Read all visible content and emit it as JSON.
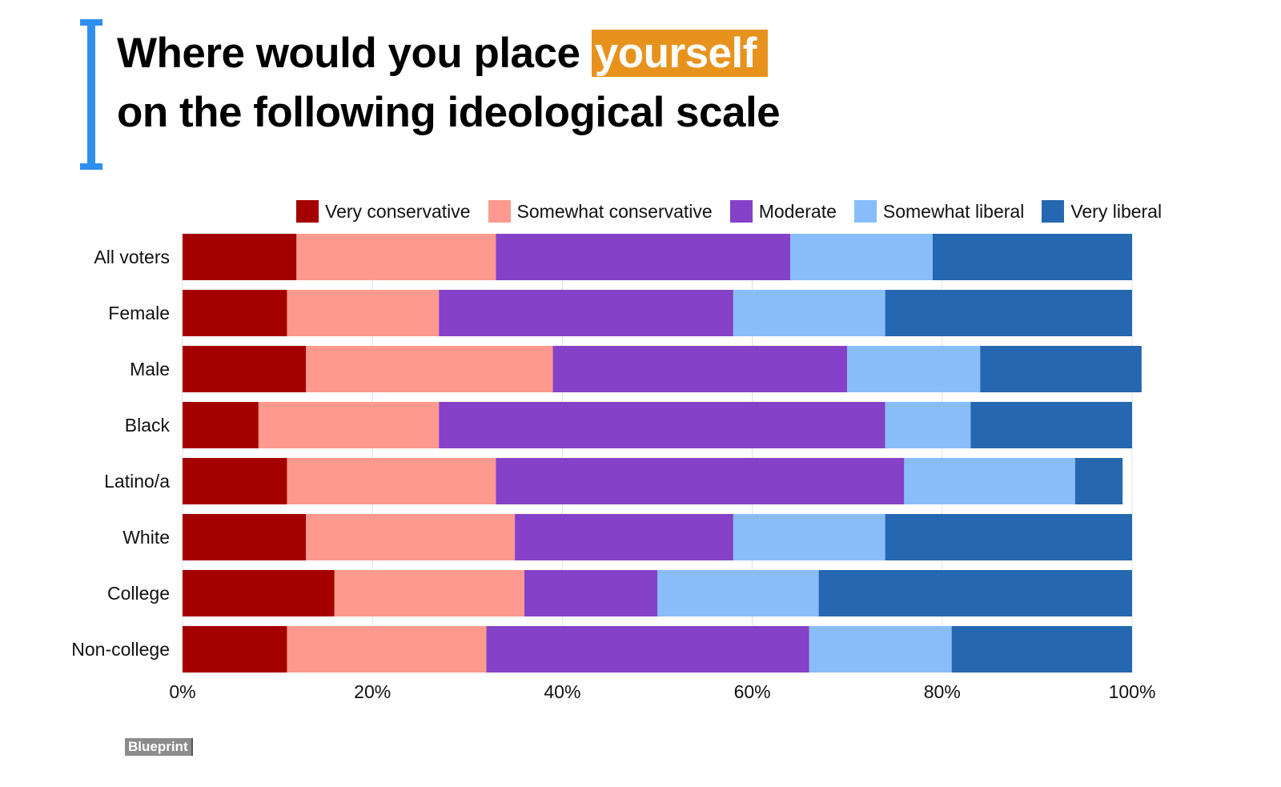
{
  "header": {
    "title_part1": "Where would you place",
    "title_highlight": "yourself",
    "title_line2": "on the following ideological scale"
  },
  "brand": {
    "logo_text": "Blueprint"
  },
  "chart_data": {
    "type": "bar",
    "orientation": "horizontal",
    "stacked": true,
    "title": "Where would you place yourself on the following ideological scale",
    "xlim": [
      0,
      100
    ],
    "x_ticks": [
      "0%",
      "20%",
      "40%",
      "60%",
      "80%",
      "100%"
    ],
    "x_tick_values": [
      0,
      20,
      40,
      60,
      80,
      100
    ],
    "grid": true,
    "legend_position": "top",
    "categories": [
      "All voters",
      "Female",
      "Male",
      "Black",
      "Latino/a",
      "White",
      "College",
      "Non-college"
    ],
    "series": [
      {
        "name": "Very conservative",
        "color": "#a50000",
        "values": [
          12,
          11,
          13,
          8,
          11,
          13,
          16,
          11
        ]
      },
      {
        "name": "Somewhat conservative",
        "color": "#fd998e",
        "values": [
          21,
          16,
          26,
          19,
          22,
          22,
          20,
          21
        ]
      },
      {
        "name": "Moderate",
        "color": "#8541c8",
        "values": [
          31,
          31,
          31,
          47,
          43,
          23,
          14,
          34
        ]
      },
      {
        "name": "Somewhat liberal",
        "color": "#88bdfa",
        "values": [
          15,
          16,
          14,
          9,
          18,
          16,
          17,
          15
        ]
      },
      {
        "name": "Very liberal",
        "color": "#2567b0",
        "values": [
          21,
          26,
          17,
          17,
          5,
          26,
          33,
          19
        ]
      }
    ],
    "accent_colors": {
      "highlight": "#e8921e",
      "bracket": "#2f8fef"
    }
  }
}
